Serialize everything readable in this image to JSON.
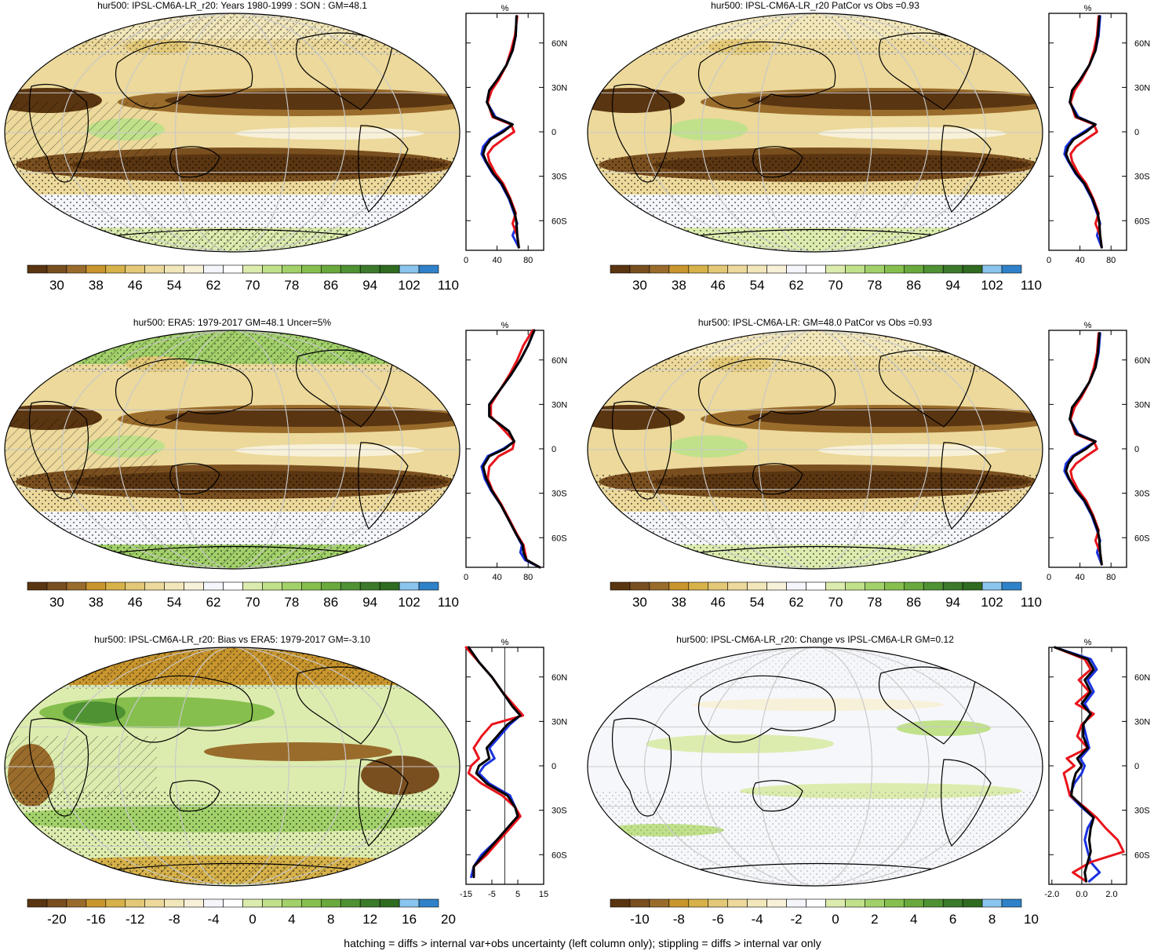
{
  "footer": "hatching = diffs > internal var+obs uncertainty (left column only); stippling = diffs > internal var only",
  "lat_labels": [
    "60N",
    "30N",
    "0",
    "30S",
    "60S"
  ],
  "unit_label": "%",
  "chart_data": [
    {
      "type": "map",
      "title": "hur500: IPSL-CM6A-LR_r20: Years 1980-1999 : SON : GM=48.1",
      "colorbar_labels": [
        "30",
        "38",
        "46",
        "54",
        "62",
        "70",
        "78",
        "86",
        "94",
        "102",
        "110"
      ],
      "profile": {
        "x_ticks": [
          "0",
          "40",
          "80"
        ],
        "xlim": [
          0,
          100
        ],
        "series": [
          {
            "color": "#1a33e0",
            "lat": [
              78,
              65,
              55,
              45,
              35,
              28,
              20,
              10,
              5,
              0,
              -5,
              -10,
              -15,
              -20,
              -28,
              -35,
              -45,
              -55,
              -62,
              -70,
              -78
            ],
            "values": [
              65,
              64,
              60,
              52,
              40,
              30,
              27,
              38,
              60,
              45,
              30,
              22,
              20,
              25,
              34,
              45,
              55,
              62,
              66,
              60,
              68
            ]
          },
          {
            "color": "#e8141b",
            "lat": [
              78,
              65,
              55,
              45,
              35,
              28,
              20,
              10,
              5,
              0,
              -5,
              -10,
              -15,
              -20,
              -28,
              -35,
              -45,
              -55,
              -62,
              -70,
              -78
            ],
            "values": [
              66,
              63,
              58,
              52,
              42,
              33,
              28,
              34,
              58,
              62,
              48,
              35,
              28,
              30,
              38,
              48,
              57,
              64,
              60,
              66,
              68
            ]
          },
          {
            "color": "#000000",
            "lat": [
              78,
              65,
              55,
              45,
              35,
              28,
              20,
              10,
              5,
              0,
              -5,
              -10,
              -15,
              -20,
              -28,
              -35,
              -45,
              -55,
              -62,
              -70,
              -78
            ],
            "values": [
              65,
              64,
              60,
              52,
              40,
              30,
              27,
              36,
              60,
              48,
              32,
              25,
              22,
              26,
              35,
              46,
              56,
              63,
              65,
              66,
              68
            ]
          }
        ]
      }
    },
    {
      "type": "map",
      "title": "hur500: IPSL-CM6A-LR_r20 PatCor vs Obs =0.93",
      "colorbar_labels": [
        "30",
        "38",
        "46",
        "54",
        "62",
        "70",
        "78",
        "86",
        "94",
        "102",
        "110"
      ],
      "profile": {
        "x_ticks": [
          "0",
          "40",
          "80"
        ],
        "xlim": [
          0,
          100
        ],
        "series": [
          {
            "color": "#1a33e0",
            "lat": [
              78,
              65,
              55,
              45,
              35,
              28,
              20,
              10,
              5,
              0,
              -5,
              -10,
              -15,
              -20,
              -28,
              -35,
              -45,
              -55,
              -62,
              -70,
              -78
            ],
            "values": [
              66,
              64,
              60,
              52,
              40,
              30,
              27,
              38,
              60,
              45,
              30,
              22,
              20,
              25,
              34,
              45,
              55,
              62,
              66,
              62,
              68
            ]
          },
          {
            "color": "#e8141b",
            "lat": [
              78,
              65,
              55,
              45,
              35,
              28,
              20,
              10,
              5,
              0,
              -5,
              -10,
              -15,
              -20,
              -28,
              -35,
              -45,
              -55,
              -62,
              -70,
              -78
            ],
            "values": [
              64,
              62,
              58,
              52,
              42,
              33,
              28,
              34,
              58,
              62,
              48,
              35,
              28,
              30,
              38,
              48,
              57,
              64,
              60,
              66,
              68
            ]
          },
          {
            "color": "#000000",
            "lat": [
              78,
              65,
              55,
              45,
              35,
              28,
              20,
              10,
              5,
              0,
              -5,
              -10,
              -15,
              -20,
              -28,
              -35,
              -45,
              -55,
              -62,
              -70,
              -78
            ],
            "values": [
              65,
              63,
              60,
              52,
              40,
              30,
              27,
              36,
              60,
              48,
              32,
              25,
              22,
              26,
              35,
              46,
              56,
              63,
              65,
              66,
              68
            ]
          }
        ]
      }
    },
    {
      "type": "map",
      "title": "hur500: ERA5: 1979-2017 GM=48.1 Uncer=5%",
      "colorbar_labels": [
        "30",
        "38",
        "46",
        "54",
        "62",
        "70",
        "78",
        "86",
        "94",
        "102",
        "110"
      ],
      "profile": {
        "x_ticks": [
          "0",
          "40",
          "80"
        ],
        "xlim": [
          0,
          100
        ],
        "series": [
          {
            "color": "#1a33e0",
            "lat": [
              80,
              70,
              60,
              50,
              40,
              30,
              22,
              12,
              5,
              0,
              -5,
              -12,
              -20,
              -28,
              -38,
              -48,
              -58,
              -65,
              -70,
              -75,
              -80
            ],
            "values": [
              88,
              80,
              70,
              58,
              44,
              30,
              30,
              55,
              62,
              48,
              28,
              20,
              24,
              32,
              45,
              55,
              65,
              72,
              70,
              76,
              95
            ]
          },
          {
            "color": "#e8141b",
            "lat": [
              80,
              70,
              60,
              50,
              40,
              30,
              22,
              12,
              5,
              0,
              -5,
              -12,
              -20,
              -28,
              -38,
              -48,
              -58,
              -65,
              -70,
              -75,
              -80
            ],
            "values": [
              86,
              74,
              66,
              56,
              44,
              32,
              32,
              50,
              62,
              60,
              42,
              30,
              28,
              34,
              46,
              56,
              66,
              74,
              76,
              78,
              95
            ]
          },
          {
            "color": "#000000",
            "lat": [
              80,
              70,
              60,
              50,
              40,
              30,
              22,
              12,
              5,
              0,
              -5,
              -12,
              -20,
              -28,
              -38,
              -48,
              -58,
              -65,
              -70,
              -75,
              -80
            ],
            "values": [
              88,
              80,
              70,
              58,
              44,
              30,
              30,
              55,
              62,
              50,
              30,
              22,
              26,
              33,
              45,
              55,
              65,
              73,
              74,
              78,
              95
            ]
          }
        ]
      }
    },
    {
      "type": "map",
      "title": "hur500: IPSL-CM6A-LR: GM=48.0 PatCor vs Obs =0.93",
      "colorbar_labels": [
        "30",
        "38",
        "46",
        "54",
        "62",
        "70",
        "78",
        "86",
        "94",
        "102",
        "110"
      ],
      "profile": {
        "x_ticks": [
          "0",
          "40",
          "80"
        ],
        "xlim": [
          0,
          100
        ],
        "series": [
          {
            "color": "#1a33e0",
            "lat": [
              78,
              65,
              55,
              45,
              35,
              28,
              20,
              10,
              5,
              0,
              -5,
              -10,
              -15,
              -20,
              -28,
              -35,
              -45,
              -55,
              -62,
              -70,
              -78
            ],
            "values": [
              66,
              64,
              60,
              52,
              40,
              30,
              27,
              38,
              60,
              45,
              30,
              22,
              20,
              25,
              34,
              45,
              55,
              62,
              66,
              62,
              68
            ]
          },
          {
            "color": "#e8141b",
            "lat": [
              78,
              65,
              55,
              45,
              35,
              28,
              20,
              10,
              5,
              0,
              -5,
              -10,
              -15,
              -20,
              -28,
              -35,
              -45,
              -55,
              -62,
              -70,
              -78
            ],
            "values": [
              64,
              62,
              58,
              52,
              42,
              33,
              28,
              34,
              58,
              62,
              48,
              35,
              28,
              30,
              38,
              48,
              57,
              64,
              60,
              66,
              68
            ]
          },
          {
            "color": "#000000",
            "lat": [
              78,
              65,
              55,
              45,
              35,
              28,
              20,
              10,
              5,
              0,
              -5,
              -10,
              -15,
              -20,
              -28,
              -35,
              -45,
              -55,
              -62,
              -70,
              -78
            ],
            "values": [
              65,
              63,
              60,
              52,
              40,
              30,
              27,
              36,
              60,
              48,
              32,
              25,
              22,
              26,
              35,
              46,
              56,
              63,
              65,
              66,
              68
            ]
          }
        ]
      }
    },
    {
      "type": "map",
      "title": "hur500: IPSL-CM6A-LR_r20: Bias vs ERA5: 1979-2017  GM=-3.10",
      "colorbar_labels": [
        "-20",
        "-16",
        "-12",
        "-8",
        "-4",
        "0",
        "4",
        "8",
        "12",
        "16",
        "20"
      ],
      "profile": {
        "x_ticks": [
          "-15",
          "-5",
          "5",
          "15"
        ],
        "xlim": [
          -15,
          15
        ],
        "zero_line": 0,
        "series": [
          {
            "color": "#1a33e0",
            "lat": [
              80,
              70,
              60,
              50,
              40,
              34,
              28,
              20,
              12,
              5,
              0,
              -5,
              -12,
              -20,
              -28,
              -34,
              -40,
              -50,
              -60,
              -68,
              -75
            ],
            "values": [
              -14,
              -10,
              -5,
              -1,
              3,
              6,
              2,
              -2,
              -6,
              -4,
              -8,
              -10,
              -6,
              2,
              4,
              5,
              2,
              -3,
              -9,
              -12,
              -13
            ]
          },
          {
            "color": "#e8141b",
            "lat": [
              80,
              70,
              60,
              50,
              40,
              34,
              28,
              20,
              12,
              5,
              0,
              -5,
              -12,
              -20,
              -28,
              -34,
              -40,
              -50,
              -60,
              -68,
              -75
            ],
            "values": [
              -15,
              -10,
              -5,
              -1,
              4,
              7,
              -5,
              -9,
              -12,
              -10,
              -13,
              -14,
              -9,
              -1,
              4,
              6,
              3,
              -2,
              -7,
              -12,
              -12
            ]
          },
          {
            "color": "#000000",
            "lat": [
              80,
              70,
              60,
              50,
              40,
              34,
              28,
              20,
              12,
              5,
              0,
              -5,
              -12,
              -20,
              -28,
              -34,
              -40,
              -50,
              -60,
              -68,
              -75
            ],
            "values": [
              -14,
              -10,
              -5,
              -1,
              3,
              6,
              1,
              -3,
              -7,
              -6,
              -10,
              -11,
              -7,
              1,
              4,
              5,
              2,
              -3,
              -8,
              -12,
              -12
            ]
          }
        ]
      }
    },
    {
      "type": "map",
      "title": "hur500: IPSL-CM6A-LR_r20: Change vs IPSL-CM6A-LR GM=0.12",
      "colorbar_labels": [
        "-10",
        "-8",
        "-6",
        "-4",
        "-2",
        "0",
        "2",
        "4",
        "6",
        "8",
        "10"
      ],
      "profile": {
        "x_ticks": [
          "-2.0",
          "0.0",
          "2.0"
        ],
        "xlim": [
          -2.2,
          3.0
        ],
        "zero_line": 0,
        "series": [
          {
            "color": "#1a33e0",
            "lat": [
              80,
              72,
              65,
              58,
              50,
              42,
              35,
              28,
              20,
              12,
              5,
              0,
              -5,
              -12,
              -20,
              -28,
              -35,
              -42,
              -50,
              -58,
              -65,
              -72,
              -78
            ],
            "values": [
              -1.8,
              0.6,
              1.0,
              0.4,
              0.8,
              0.2,
              0.6,
              0.1,
              0.3,
              0.5,
              -0.1,
              0.2,
              0.0,
              -0.5,
              -0.8,
              0.0,
              0.8,
              0.4,
              0.2,
              0.4,
              0.6,
              1.2,
              0.5
            ]
          },
          {
            "color": "#e8141b",
            "lat": [
              80,
              72,
              65,
              58,
              50,
              42,
              35,
              28,
              20,
              12,
              5,
              0,
              -5,
              -12,
              -20,
              -28,
              -35,
              -42,
              -50,
              -58,
              -65,
              -72,
              -78
            ],
            "values": [
              -1.8,
              0.2,
              0.6,
              -0.2,
              0.5,
              -0.4,
              0.8,
              0.0,
              -0.3,
              0.4,
              -1.0,
              -0.5,
              -1.2,
              -1.0,
              -0.8,
              0.2,
              1.0,
              1.6,
              2.4,
              2.8,
              0.6,
              -0.6,
              0.3
            ]
          },
          {
            "color": "#000000",
            "lat": [
              80,
              72,
              65,
              58,
              50,
              42,
              35,
              28,
              20,
              12,
              5,
              0,
              -5,
              -12,
              -20,
              -28,
              -35,
              -42,
              -50,
              -58,
              -65,
              -72,
              -78
            ],
            "values": [
              -1.8,
              0.4,
              0.8,
              0.2,
              0.6,
              0.0,
              0.6,
              0.1,
              0.1,
              0.4,
              -0.3,
              0.0,
              -0.4,
              -0.6,
              -0.7,
              0.1,
              0.8,
              0.6,
              0.5,
              0.6,
              0.4,
              0.2,
              0.3
            ]
          }
        ]
      }
    }
  ]
}
